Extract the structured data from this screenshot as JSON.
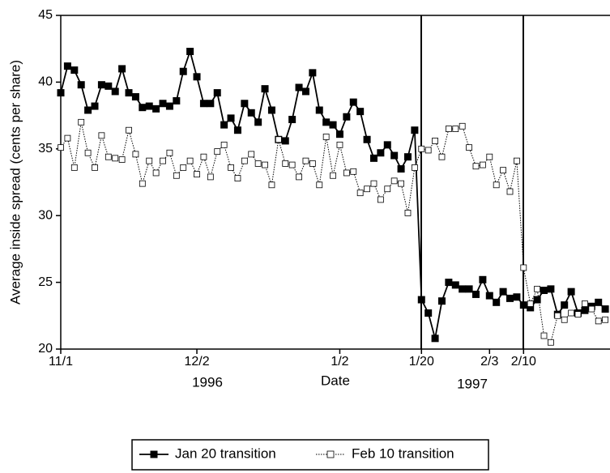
{
  "chart_data": {
    "type": "line",
    "ylabel": "Average inside spread (cents per share)",
    "xlabel": "Date",
    "year_labels": [
      "1996",
      "1997"
    ],
    "categories": [
      "11/1",
      null,
      null,
      null,
      null,
      null,
      null,
      null,
      null,
      null,
      null,
      null,
      null,
      null,
      null,
      null,
      null,
      null,
      null,
      null,
      "12/2",
      null,
      null,
      null,
      null,
      null,
      null,
      null,
      null,
      null,
      null,
      null,
      null,
      null,
      null,
      null,
      null,
      null,
      null,
      null,
      null,
      "1/2",
      null,
      null,
      null,
      null,
      null,
      null,
      null,
      null,
      null,
      null,
      null,
      "1/20",
      null,
      null,
      null,
      null,
      null,
      null,
      null,
      null,
      null,
      "2/3",
      null,
      null,
      null,
      null,
      "2/10",
      null,
      null,
      null,
      null,
      null,
      null,
      null,
      null,
      null,
      null,
      null,
      null
    ],
    "series": [
      {
        "name": "Jan 20 transition",
        "color": "#000000",
        "marker": "filled",
        "dash": "solid",
        "values": [
          39.2,
          41.2,
          40.9,
          39.8,
          37.9,
          38.2,
          39.8,
          39.7,
          39.3,
          41.0,
          39.2,
          38.9,
          38.1,
          38.2,
          38.0,
          38.4,
          38.2,
          38.6,
          40.8,
          42.3,
          40.4,
          38.4,
          38.4,
          39.2,
          36.8,
          37.3,
          36.4,
          38.4,
          37.7,
          37.0,
          39.5,
          37.9,
          35.7,
          35.6,
          37.2,
          39.6,
          39.3,
          40.7,
          37.9,
          37.0,
          36.8,
          36.1,
          37.4,
          38.5,
          37.8,
          35.7,
          34.3,
          34.7,
          35.3,
          34.5,
          33.5,
          34.4,
          36.4,
          23.7,
          22.7,
          20.8,
          23.6,
          25.0,
          24.8,
          24.5,
          24.5,
          24.1,
          25.2,
          24.0,
          23.5,
          24.3,
          23.8,
          23.9,
          23.3,
          23.1,
          23.7,
          24.4,
          24.5,
          22.6,
          23.3,
          24.3,
          22.7,
          22.9,
          23.2,
          23.5,
          23.0
        ]
      },
      {
        "name": "Feb 10 transition",
        "color": "#000000",
        "marker": "hollow",
        "dash": "dotted",
        "values": [
          35.1,
          35.8,
          33.6,
          37.0,
          34.7,
          33.6,
          36.0,
          34.4,
          34.3,
          34.2,
          36.4,
          34.6,
          32.4,
          34.1,
          33.2,
          34.1,
          34.7,
          33.0,
          33.6,
          34.1,
          33.1,
          34.4,
          32.9,
          34.8,
          35.3,
          33.6,
          32.8,
          34.1,
          34.6,
          33.9,
          33.8,
          32.3,
          35.7,
          33.9,
          33.8,
          32.9,
          34.1,
          33.9,
          32.3,
          35.9,
          33.0,
          35.3,
          33.2,
          33.3,
          31.7,
          32.0,
          32.4,
          31.2,
          32.0,
          32.6,
          32.4,
          30.2,
          33.6,
          35.0,
          34.9,
          35.6,
          34.4,
          36.5,
          36.5,
          36.7,
          35.1,
          33.7,
          33.8,
          34.4,
          32.3,
          33.4,
          31.8,
          34.1,
          26.1,
          23.4,
          24.5,
          21.0,
          20.5,
          22.5,
          22.2,
          22.7,
          22.6,
          23.4,
          23.0,
          22.1,
          22.2
        ]
      }
    ],
    "ylim": [
      20,
      45
    ],
    "yticks": [
      20,
      25,
      30,
      35,
      40,
      45
    ],
    "grid": false,
    "legend": "bottom"
  }
}
